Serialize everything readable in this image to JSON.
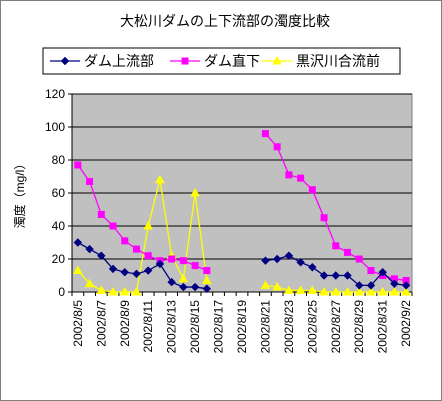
{
  "chart_data": {
    "type": "line",
    "title": "大松川ダムの上下流部の濁度比較",
    "xlabel": "",
    "ylabel": "濁度（mg/l）",
    "ylim": [
      0,
      120
    ],
    "yticks": [
      0,
      20,
      40,
      60,
      80,
      100,
      120
    ],
    "grid": "horizontal",
    "legend_position": "top",
    "plot_background": "#c0c0c0",
    "x": [
      "2002/8/5",
      "2002/8/6",
      "2002/8/7",
      "2002/8/8",
      "2002/8/9",
      "2002/8/10",
      "2002/8/11",
      "2002/8/12",
      "2002/8/13",
      "2002/8/14",
      "2002/8/15",
      "2002/8/16",
      "2002/8/17",
      "2002/8/18",
      "2002/8/19",
      "2002/8/20",
      "2002/8/21",
      "2002/8/22",
      "2002/8/23",
      "2002/8/24",
      "2002/8/25",
      "2002/8/26",
      "2002/8/27",
      "2002/8/28",
      "2002/8/29",
      "2002/8/30",
      "2002/8/31",
      "2002/9/1",
      "2002/9/2"
    ],
    "xtick_labels": [
      "2002/8/5",
      "2002/8/7",
      "2002/8/9",
      "2002/8/11",
      "2002/8/13",
      "2002/8/15",
      "2002/8/17",
      "2002/8/19",
      "2002/8/21",
      "2002/8/23",
      "2002/8/25",
      "2002/8/27",
      "2002/8/29",
      "2002/8/31",
      "2002/9/2"
    ],
    "series": [
      {
        "name": "ダム上流部",
        "color": "#000080",
        "marker": "diamond",
        "values": [
          30,
          26,
          22,
          14,
          12,
          11,
          13,
          17,
          6,
          3,
          3,
          2,
          null,
          null,
          null,
          null,
          19,
          20,
          22,
          18,
          15,
          10,
          10,
          10,
          4,
          4,
          12,
          5,
          4
        ]
      },
      {
        "name": "ダム直下",
        "color": "#ff00ff",
        "marker": "square",
        "values": [
          77,
          67,
          47,
          40,
          31,
          26,
          22,
          19,
          20,
          19,
          16,
          13,
          null,
          null,
          null,
          null,
          96,
          88,
          71,
          69,
          62,
          45,
          28,
          24,
          20,
          13,
          10,
          8,
          7
        ]
      },
      {
        "name": "黒沢川合流前",
        "color": "#ffff00",
        "marker": "triangle",
        "values": [
          13,
          5,
          1,
          0,
          0,
          0,
          40,
          68,
          22,
          8,
          60,
          7,
          null,
          null,
          null,
          null,
          4,
          3,
          1,
          1,
          1,
          0,
          0,
          0,
          0,
          0,
          0,
          0,
          0
        ]
      }
    ]
  }
}
